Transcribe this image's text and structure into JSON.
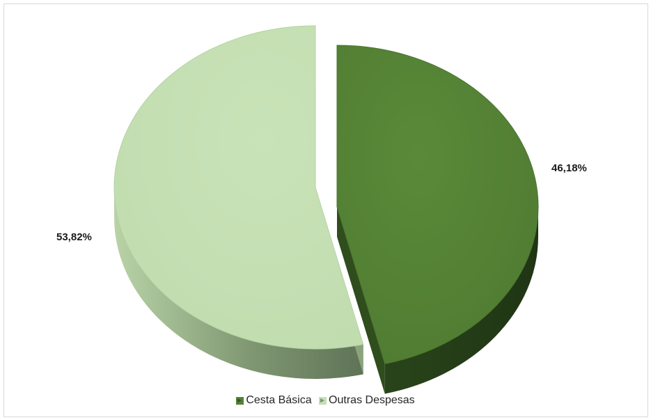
{
  "chart_data": {
    "type": "pie",
    "title": "",
    "legend_position": "bottom",
    "series": [
      {
        "name": "",
        "slices": [
          {
            "label": "Cesta Básica",
            "value": 46.18,
            "display": "46,18%",
            "color": "#548235",
            "side_color": "#2f4d1d"
          },
          {
            "label": "Outras Despesas",
            "value": 53.82,
            "display": "53,82%",
            "color": "#c5e0b4",
            "side_color": "#8aa37c"
          }
        ]
      }
    ]
  }
}
